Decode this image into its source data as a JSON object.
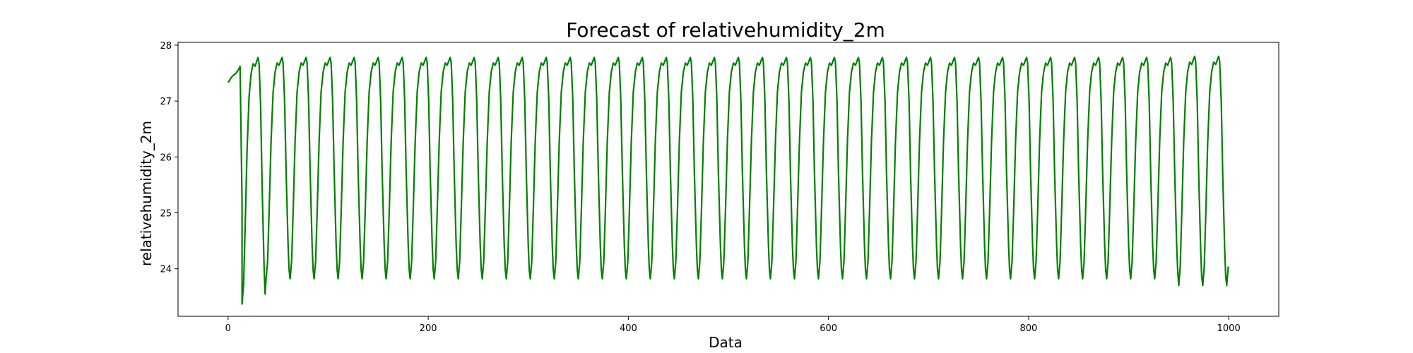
{
  "chart_data": {
    "type": "line",
    "title": "Forecast of relativehumidity_2m",
    "xlabel": "Data",
    "ylabel": "relativehumidity_2m",
    "xlim": [
      -50,
      1050
    ],
    "ylim": [
      23.15,
      28.05
    ],
    "xticks": [
      0,
      200,
      400,
      600,
      800,
      1000
    ],
    "yticks": [
      24,
      25,
      26,
      27,
      28
    ],
    "grid": false,
    "legend": "none",
    "series": [
      {
        "color": "#008000",
        "start": {
          "x": [
            0,
            4,
            8,
            10,
            12,
            14
          ],
          "y": [
            27.33,
            27.44,
            27.5,
            27.55,
            27.62,
            25.2
          ]
        },
        "x_end": 1000,
        "cycle": {
          "period": 24,
          "first_min_x": 14,
          "first_min_y": 23.37,
          "min_y": 23.82,
          "max_y": 27.8,
          "last_min_y": 23.7,
          "last_max_y": 27.82,
          "end_y": 24.0
        }
      }
    ]
  }
}
